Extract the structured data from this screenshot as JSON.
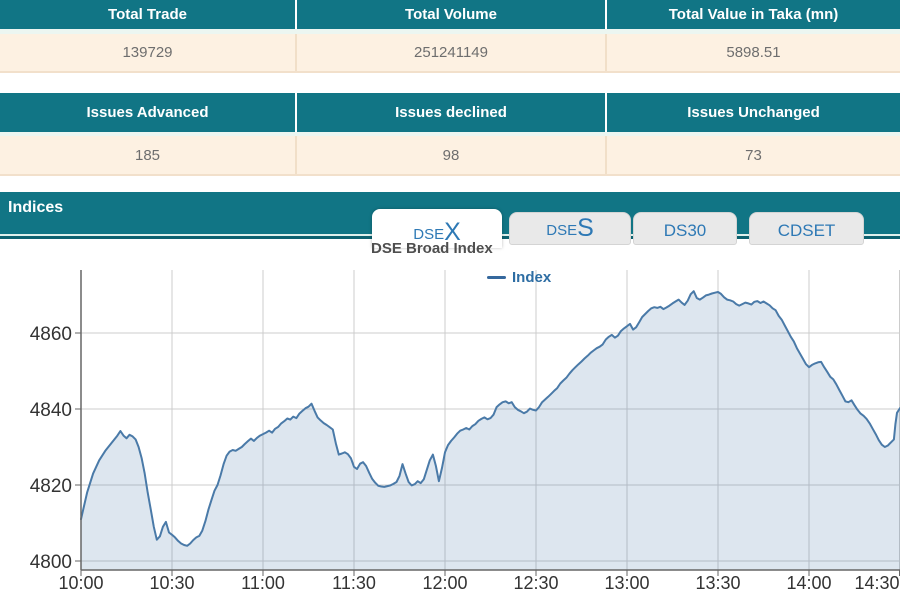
{
  "summary_table_1": {
    "headers": [
      "Total Trade",
      "Total Volume",
      "Total Value in Taka (mn)"
    ],
    "values": [
      "139729",
      "251241149",
      "5898.51"
    ]
  },
  "summary_table_2": {
    "headers": [
      "Issues Advanced",
      "Issues declined",
      "Issues Unchanged"
    ],
    "values": [
      "185",
      "98",
      "73"
    ]
  },
  "indices": {
    "title": "Indices",
    "subtitle": "DSE Broad Index",
    "tabs": [
      {
        "small": "DSE",
        "big": "X",
        "active": true
      },
      {
        "small": "DSE",
        "big": "S",
        "active": false
      },
      {
        "label": "DS30",
        "active": false
      },
      {
        "label": "CDSET",
        "active": false
      }
    ]
  },
  "colors": {
    "teal": "#117585",
    "teal_dark": "#0d616f",
    "cream": "#fdf1e2",
    "tab_text": "#2e79b5",
    "line": "#4a7aa8",
    "fill": "rgba(74,122,171,0.19)",
    "grid": "#cccccc",
    "axis": "#666666",
    "tick_text": "#333333",
    "legend_swatch": "#35689d"
  },
  "chart_data": {
    "type": "area",
    "title": "DSE Broad Index",
    "legend": [
      {
        "label": "Index",
        "color": "#35689d"
      }
    ],
    "x_ticks": [
      "10:00",
      "10:30",
      "11:00",
      "11:30",
      "12:00",
      "12:30",
      "13:00",
      "13:30",
      "14:00",
      "14:30"
    ],
    "x_tick_interval_minutes": 30,
    "y_ticks": [
      4800,
      4820,
      4840,
      4860
    ],
    "ylim": [
      4800,
      4875
    ],
    "grid": true,
    "legend_position": "top-center",
    "series": [
      {
        "name": "Index",
        "color": "#4a7aa8",
        "fill": "rgba(74,122,171,0.19)",
        "points": [
          [
            0,
            4811
          ],
          [
            2,
            4818
          ],
          [
            4,
            4823
          ],
          [
            6,
            4826.5
          ],
          [
            8,
            4829
          ],
          [
            10,
            4831
          ],
          [
            12,
            4833
          ],
          [
            13,
            4834.2
          ],
          [
            14,
            4833
          ],
          [
            15,
            4832.3
          ],
          [
            16,
            4833.2
          ],
          [
            17,
            4832.8
          ],
          [
            18,
            4832
          ],
          [
            19,
            4830
          ],
          [
            20,
            4827
          ],
          [
            21,
            4823
          ],
          [
            22,
            4818
          ],
          [
            23,
            4813.5
          ],
          [
            24,
            4809
          ],
          [
            25,
            4805.6
          ],
          [
            26,
            4806.5
          ],
          [
            27,
            4809
          ],
          [
            28,
            4810.3
          ],
          [
            29,
            4807.5
          ],
          [
            30,
            4806.9
          ],
          [
            31,
            4806.2
          ],
          [
            32,
            4805.3
          ],
          [
            33,
            4804.6
          ],
          [
            34,
            4804.2
          ],
          [
            35,
            4804
          ],
          [
            36,
            4804.6
          ],
          [
            37,
            4805.5
          ],
          [
            38,
            4806.2
          ],
          [
            39,
            4806.6
          ],
          [
            40,
            4808
          ],
          [
            41,
            4810.5
          ],
          [
            42,
            4813.5
          ],
          [
            43,
            4816
          ],
          [
            44,
            4818.5
          ],
          [
            45,
            4820
          ],
          [
            46,
            4822.5
          ],
          [
            47,
            4825.5
          ],
          [
            48,
            4827.7
          ],
          [
            49,
            4828.8
          ],
          [
            50,
            4829.2
          ],
          [
            51,
            4829
          ],
          [
            52,
            4829.5
          ],
          [
            53,
            4830
          ],
          [
            54,
            4830.8
          ],
          [
            55,
            4831.5
          ],
          [
            56,
            4832.2
          ],
          [
            57,
            4831.6
          ],
          [
            58,
            4832.4
          ],
          [
            59,
            4833
          ],
          [
            60,
            4833.4
          ],
          [
            61,
            4833.8
          ],
          [
            62,
            4834.3
          ],
          [
            63,
            4833.8
          ],
          [
            64,
            4834.8
          ],
          [
            65,
            4835.3
          ],
          [
            66,
            4836.2
          ],
          [
            67,
            4836.8
          ],
          [
            68,
            4837.5
          ],
          [
            69,
            4837.2
          ],
          [
            70,
            4838
          ],
          [
            71,
            4837.6
          ],
          [
            72,
            4838.8
          ],
          [
            73,
            4839.5
          ],
          [
            74,
            4840.2
          ],
          [
            75,
            4840.6
          ],
          [
            76,
            4841.4
          ],
          [
            77,
            4839.5
          ],
          [
            78,
            4837.8
          ],
          [
            79,
            4837
          ],
          [
            80,
            4836.3
          ],
          [
            81,
            4835.8
          ],
          [
            82,
            4835.2
          ],
          [
            83,
            4834.6
          ],
          [
            84,
            4831
          ],
          [
            85,
            4828
          ],
          [
            86,
            4828.3
          ],
          [
            87,
            4828.6
          ],
          [
            88,
            4828.1
          ],
          [
            89,
            4827
          ],
          [
            90,
            4824.8
          ],
          [
            91,
            4824.2
          ],
          [
            92,
            4825.6
          ],
          [
            93,
            4826
          ],
          [
            94,
            4825
          ],
          [
            95,
            4823.2
          ],
          [
            96,
            4821.6
          ],
          [
            97,
            4820.6
          ],
          [
            98,
            4819.8
          ],
          [
            99,
            4819.6
          ],
          [
            100,
            4819.5
          ],
          [
            101,
            4819.7
          ],
          [
            102,
            4819.9
          ],
          [
            103,
            4820.3
          ],
          [
            104,
            4820.8
          ],
          [
            105,
            4822.4
          ],
          [
            106,
            4825.5
          ],
          [
            107,
            4823
          ],
          [
            108,
            4820.8
          ],
          [
            109,
            4819.9
          ],
          [
            110,
            4820.2
          ],
          [
            111,
            4821
          ],
          [
            112,
            4820.5
          ],
          [
            113,
            4821.5
          ],
          [
            114,
            4824
          ],
          [
            115,
            4826.5
          ],
          [
            116,
            4828
          ],
          [
            117,
            4825
          ],
          [
            118,
            4821
          ],
          [
            119,
            4824.5
          ],
          [
            120,
            4828.6
          ],
          [
            121,
            4830.5
          ],
          [
            122,
            4831.6
          ],
          [
            123,
            4832.5
          ],
          [
            124,
            4833.5
          ],
          [
            125,
            4834.3
          ],
          [
            126,
            4834.6
          ],
          [
            127,
            4835
          ],
          [
            128,
            4834.6
          ],
          [
            129,
            4835.5
          ],
          [
            130,
            4836
          ],
          [
            131,
            4836.9
          ],
          [
            132,
            4837.4
          ],
          [
            133,
            4837.8
          ],
          [
            134,
            4837.3
          ],
          [
            135,
            4837.6
          ],
          [
            136,
            4838.5
          ],
          [
            137,
            4840.5
          ],
          [
            138,
            4841.2
          ],
          [
            139,
            4841.8
          ],
          [
            140,
            4842
          ],
          [
            141,
            4841.5
          ],
          [
            142,
            4841.8
          ],
          [
            143,
            4840.5
          ],
          [
            144,
            4839.8
          ],
          [
            145,
            4839.4
          ],
          [
            146,
            4838.9
          ],
          [
            147,
            4839.3
          ],
          [
            148,
            4840.1
          ],
          [
            149,
            4839.8
          ],
          [
            150,
            4839.6
          ],
          [
            151,
            4840.5
          ],
          [
            152,
            4841.8
          ],
          [
            153,
            4842.5
          ],
          [
            154,
            4843.2
          ],
          [
            155,
            4844
          ],
          [
            156,
            4844.8
          ],
          [
            157,
            4845.5
          ],
          [
            158,
            4846.7
          ],
          [
            159,
            4847.5
          ],
          [
            160,
            4848.2
          ],
          [
            161,
            4849.3
          ],
          [
            162,
            4850.2
          ],
          [
            163,
            4851
          ],
          [
            164,
            4851.8
          ],
          [
            165,
            4852.5
          ],
          [
            166,
            4853.3
          ],
          [
            167,
            4854
          ],
          [
            168,
            4854.8
          ],
          [
            169,
            4855.4
          ],
          [
            170,
            4856
          ],
          [
            171,
            4856.4
          ],
          [
            172,
            4857
          ],
          [
            173,
            4858.3
          ],
          [
            174,
            4859
          ],
          [
            175,
            4859.5
          ],
          [
            176,
            4858.8
          ],
          [
            177,
            4859.3
          ],
          [
            178,
            4860.5
          ],
          [
            179,
            4861.2
          ],
          [
            180,
            4861.8
          ],
          [
            181,
            4862.4
          ],
          [
            182,
            4860.9
          ],
          [
            183,
            4861.5
          ],
          [
            184,
            4862.8
          ],
          [
            185,
            4864.2
          ],
          [
            186,
            4865
          ],
          [
            187,
            4865.8
          ],
          [
            188,
            4866.5
          ],
          [
            189,
            4866.8
          ],
          [
            190,
            4866.6
          ],
          [
            191,
            4866.9
          ],
          [
            192,
            4866.3
          ],
          [
            193,
            4866.7
          ],
          [
            194,
            4867.2
          ],
          [
            195,
            4867.8
          ],
          [
            196,
            4868.3
          ],
          [
            197,
            4868.8
          ],
          [
            198,
            4868
          ],
          [
            199,
            4867.4
          ],
          [
            200,
            4868.5
          ],
          [
            201,
            4870.2
          ],
          [
            202,
            4871
          ],
          [
            203,
            4869.2
          ],
          [
            204,
            4868.8
          ],
          [
            205,
            4869.3
          ],
          [
            206,
            4869.9
          ],
          [
            207,
            4870.1
          ],
          [
            208,
            4870.4
          ],
          [
            209,
            4870.6
          ],
          [
            210,
            4870.8
          ],
          [
            211,
            4870.3
          ],
          [
            212,
            4869.4
          ],
          [
            213,
            4868.8
          ],
          [
            214,
            4868.6
          ],
          [
            215,
            4868.3
          ],
          [
            216,
            4867.6
          ],
          [
            217,
            4867.2
          ],
          [
            218,
            4867.6
          ],
          [
            219,
            4868
          ],
          [
            220,
            4867.8
          ],
          [
            221,
            4867.5
          ],
          [
            222,
            4868.2
          ],
          [
            223,
            4868.4
          ],
          [
            224,
            4867.9
          ],
          [
            225,
            4868.3
          ],
          [
            226,
            4867.8
          ],
          [
            227,
            4867.3
          ],
          [
            228,
            4866.5
          ],
          [
            229,
            4866
          ],
          [
            230,
            4864.5
          ],
          [
            231,
            4863.5
          ],
          [
            232,
            4862
          ],
          [
            233,
            4860.5
          ],
          [
            234,
            4859
          ],
          [
            235,
            4857.8
          ],
          [
            236,
            4856
          ],
          [
            237,
            4854.6
          ],
          [
            238,
            4853.2
          ],
          [
            239,
            4851.8
          ],
          [
            240,
            4851
          ],
          [
            241,
            4851.6
          ],
          [
            242,
            4852
          ],
          [
            243,
            4852.3
          ],
          [
            244,
            4852.4
          ],
          [
            245,
            4851
          ],
          [
            246,
            4849.8
          ],
          [
            247,
            4848.5
          ],
          [
            248,
            4847.8
          ],
          [
            249,
            4846.5
          ],
          [
            250,
            4845
          ],
          [
            251,
            4843.5
          ],
          [
            252,
            4842
          ],
          [
            253,
            4841.8
          ],
          [
            254,
            4842.3
          ],
          [
            255,
            4841
          ],
          [
            256,
            4839.8
          ],
          [
            257,
            4838.8
          ],
          [
            258,
            4838.2
          ],
          [
            259,
            4837.4
          ],
          [
            260,
            4836.2
          ],
          [
            261,
            4834.8
          ],
          [
            262,
            4833.4
          ],
          [
            263,
            4831.8
          ],
          [
            264,
            4830.6
          ],
          [
            265,
            4830
          ],
          [
            266,
            4830.4
          ],
          [
            267,
            4831.2
          ],
          [
            268,
            4832
          ],
          [
            268.5,
            4836
          ],
          [
            269,
            4839
          ],
          [
            270,
            4840.2
          ]
        ]
      }
    ]
  }
}
